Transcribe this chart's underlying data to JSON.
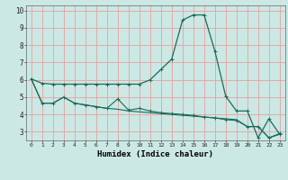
{
  "xlabel": "Humidex (Indice chaleur)",
  "bg_color": "#cbe8e4",
  "grid_color": "#e8a0a0",
  "line_color": "#1a6b5a",
  "xlim": [
    -0.5,
    23.5
  ],
  "ylim": [
    2.5,
    10.3
  ],
  "xticks": [
    0,
    1,
    2,
    3,
    4,
    5,
    6,
    7,
    8,
    9,
    10,
    11,
    12,
    13,
    14,
    15,
    16,
    17,
    18,
    19,
    20,
    21,
    22,
    23
  ],
  "yticks": [
    3,
    4,
    5,
    6,
    7,
    8,
    9,
    10
  ],
  "line1_x": [
    0,
    1,
    2,
    3,
    4,
    5,
    6,
    7,
    8,
    9,
    10,
    11,
    12,
    13,
    14,
    15,
    16,
    17,
    18,
    19,
    20,
    21,
    22,
    23
  ],
  "line1_y": [
    6.05,
    5.8,
    5.75,
    5.75,
    5.75,
    5.75,
    5.75,
    5.75,
    5.75,
    5.75,
    5.75,
    6.0,
    6.6,
    7.2,
    9.45,
    9.75,
    9.75,
    7.65,
    5.05,
    4.2,
    4.2,
    2.65,
    3.75,
    2.85
  ],
  "line2_x": [
    0,
    1,
    2,
    3,
    4,
    5,
    6,
    7,
    8,
    9,
    10,
    11,
    12,
    13,
    14,
    15,
    16,
    17,
    18,
    19,
    20,
    21,
    22,
    23
  ],
  "line2_y": [
    6.05,
    4.65,
    4.65,
    5.0,
    4.65,
    4.55,
    4.45,
    4.35,
    4.9,
    4.25,
    4.35,
    4.2,
    4.1,
    4.05,
    4.0,
    3.95,
    3.85,
    3.8,
    3.7,
    3.65,
    3.3,
    3.3,
    2.65,
    2.9
  ],
  "line3_x": [
    0,
    1,
    2,
    3,
    4,
    5,
    6,
    7,
    8,
    9,
    10,
    11,
    12,
    13,
    14,
    15,
    16,
    17,
    18,
    19,
    20,
    21,
    22,
    23
  ],
  "line3_y": [
    6.05,
    4.65,
    4.65,
    5.0,
    4.65,
    4.55,
    4.45,
    4.35,
    4.3,
    4.2,
    4.15,
    4.1,
    4.05,
    4.0,
    3.95,
    3.9,
    3.85,
    3.8,
    3.75,
    3.7,
    3.3,
    3.3,
    2.65,
    2.85
  ]
}
